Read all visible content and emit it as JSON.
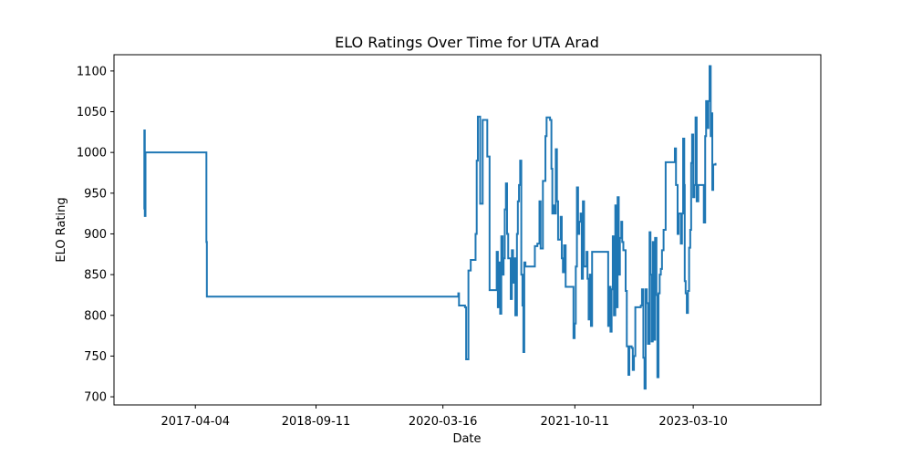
{
  "chart_data": {
    "type": "line",
    "title": "ELO Ratings Over Time for UTA Arad",
    "xlabel": "Date",
    "ylabel": "ELO Rating",
    "xlim": [
      "2016-04-15",
      "2024-09-15"
    ],
    "ylim": [
      690,
      1120
    ],
    "x_ticks": [
      "2017-04-04",
      "2018-09-11",
      "2020-03-16",
      "2021-10-11",
      "2023-03-10"
    ],
    "y_ticks": [
      700,
      750,
      800,
      850,
      900,
      950,
      1000,
      1050,
      1100
    ],
    "grid": false,
    "series": [
      {
        "color": "#1f77b4",
        "points": [
          [
            "2016-08-23",
            930
          ],
          [
            "2016-08-25",
            1027
          ],
          [
            "2016-08-27",
            922
          ],
          [
            "2016-08-30",
            1000
          ],
          [
            "2017-05-20",
            1000
          ],
          [
            "2017-05-22",
            890
          ],
          [
            "2017-05-24",
            823
          ],
          [
            "2020-05-20",
            823
          ],
          [
            "2020-05-22",
            827
          ],
          [
            "2020-05-25",
            812
          ],
          [
            "2020-06-20",
            810
          ],
          [
            "2020-06-25",
            746
          ],
          [
            "2020-07-05",
            855
          ],
          [
            "2020-07-15",
            868
          ],
          [
            "2020-08-05",
            900
          ],
          [
            "2020-08-10",
            990
          ],
          [
            "2020-08-15",
            1044
          ],
          [
            "2020-08-25",
            937
          ],
          [
            "2020-09-05",
            1040
          ],
          [
            "2020-09-25",
            995
          ],
          [
            "2020-10-05",
            831
          ],
          [
            "2020-10-25",
            831
          ],
          [
            "2020-11-05",
            878
          ],
          [
            "2020-11-10",
            810
          ],
          [
            "2020-11-15",
            865
          ],
          [
            "2020-11-20",
            802
          ],
          [
            "2020-11-25",
            897
          ],
          [
            "2020-12-01",
            850
          ],
          [
            "2020-12-05",
            870
          ],
          [
            "2020-12-10",
            930
          ],
          [
            "2020-12-15",
            962
          ],
          [
            "2020-12-20",
            900
          ],
          [
            "2020-12-25",
            870
          ],
          [
            "2021-01-05",
            820
          ],
          [
            "2021-01-10",
            880
          ],
          [
            "2021-01-15",
            840
          ],
          [
            "2021-01-20",
            870
          ],
          [
            "2021-01-25",
            800
          ],
          [
            "2021-02-01",
            900
          ],
          [
            "2021-02-05",
            940
          ],
          [
            "2021-02-10",
            960
          ],
          [
            "2021-02-15",
            990
          ],
          [
            "2021-02-20",
            850
          ],
          [
            "2021-02-25",
            812
          ],
          [
            "2021-03-01",
            755
          ],
          [
            "2021-03-05",
            865
          ],
          [
            "2021-03-10",
            860
          ],
          [
            "2021-04-15",
            860
          ],
          [
            "2021-04-20",
            885
          ],
          [
            "2021-05-01",
            888
          ],
          [
            "2021-05-10",
            940
          ],
          [
            "2021-05-15",
            882
          ],
          [
            "2021-05-25",
            965
          ],
          [
            "2021-06-05",
            1020
          ],
          [
            "2021-06-10",
            1043
          ],
          [
            "2021-06-25",
            1040
          ],
          [
            "2021-07-01",
            980
          ],
          [
            "2021-07-05",
            925
          ],
          [
            "2021-07-10",
            935
          ],
          [
            "2021-07-15",
            925
          ],
          [
            "2021-07-20",
            1004
          ],
          [
            "2021-07-25",
            940
          ],
          [
            "2021-07-30",
            893
          ],
          [
            "2021-08-10",
            921
          ],
          [
            "2021-08-15",
            870
          ],
          [
            "2021-08-20",
            853
          ],
          [
            "2021-08-25",
            886
          ],
          [
            "2021-09-01",
            835
          ],
          [
            "2021-09-30",
            835
          ],
          [
            "2021-10-05",
            772
          ],
          [
            "2021-10-10",
            790
          ],
          [
            "2021-10-15",
            860
          ],
          [
            "2021-10-20",
            957
          ],
          [
            "2021-10-25",
            900
          ],
          [
            "2021-10-30",
            915
          ],
          [
            "2021-11-05",
            925
          ],
          [
            "2021-11-10",
            845
          ],
          [
            "2021-11-15",
            940
          ],
          [
            "2021-11-20",
            860
          ],
          [
            "2021-11-25",
            860
          ],
          [
            "2021-12-01",
            878
          ],
          [
            "2021-12-05",
            845
          ],
          [
            "2021-12-10",
            795
          ],
          [
            "2021-12-15",
            850
          ],
          [
            "2021-12-20",
            787
          ],
          [
            "2021-12-25",
            878
          ],
          [
            "2022-03-01",
            878
          ],
          [
            "2022-03-05",
            787
          ],
          [
            "2022-03-10",
            835
          ],
          [
            "2022-03-15",
            780
          ],
          [
            "2022-03-20",
            832
          ],
          [
            "2022-03-25",
            897
          ],
          [
            "2022-03-30",
            800
          ],
          [
            "2022-04-05",
            935
          ],
          [
            "2022-04-10",
            810
          ],
          [
            "2022-04-15",
            945
          ],
          [
            "2022-04-20",
            850
          ],
          [
            "2022-04-25",
            895
          ],
          [
            "2022-05-01",
            915
          ],
          [
            "2022-05-05",
            890
          ],
          [
            "2022-05-10",
            880
          ],
          [
            "2022-05-20",
            830
          ],
          [
            "2022-05-25",
            762
          ],
          [
            "2022-06-01",
            727
          ],
          [
            "2022-06-05",
            762
          ],
          [
            "2022-06-15",
            760
          ],
          [
            "2022-06-20",
            733
          ],
          [
            "2022-06-25",
            750
          ],
          [
            "2022-07-01",
            810
          ],
          [
            "2022-07-25",
            812
          ],
          [
            "2022-07-30",
            832
          ],
          [
            "2022-08-05",
            748
          ],
          [
            "2022-08-10",
            710
          ],
          [
            "2022-08-15",
            832
          ],
          [
            "2022-08-20",
            815
          ],
          [
            "2022-08-25",
            765
          ],
          [
            "2022-09-01",
            902
          ],
          [
            "2022-09-05",
            850
          ],
          [
            "2022-09-10",
            768
          ],
          [
            "2022-09-15",
            890
          ],
          [
            "2022-09-20",
            770
          ],
          [
            "2022-09-25",
            895
          ],
          [
            "2022-10-01",
            825
          ],
          [
            "2022-10-05",
            724
          ],
          [
            "2022-10-10",
            827
          ],
          [
            "2022-10-15",
            850
          ],
          [
            "2022-10-20",
            857
          ],
          [
            "2022-10-25",
            880
          ],
          [
            "2022-11-01",
            905
          ],
          [
            "2022-11-10",
            988
          ],
          [
            "2022-11-20",
            988
          ],
          [
            "2022-12-15",
            988
          ],
          [
            "2022-12-20",
            1005
          ],
          [
            "2022-12-25",
            960
          ],
          [
            "2023-01-01",
            900
          ],
          [
            "2023-01-05",
            925
          ],
          [
            "2023-01-15",
            888
          ],
          [
            "2023-01-20",
            925
          ],
          [
            "2023-01-25",
            1017
          ],
          [
            "2023-01-30",
            960
          ],
          [
            "2023-02-01",
            842
          ],
          [
            "2023-02-05",
            827
          ],
          [
            "2023-02-10",
            803
          ],
          [
            "2023-02-15",
            830
          ],
          [
            "2023-02-20",
            883
          ],
          [
            "2023-02-25",
            905
          ],
          [
            "2023-03-01",
            987
          ],
          [
            "2023-03-05",
            1022
          ],
          [
            "2023-03-10",
            945
          ],
          [
            "2023-03-15",
            960
          ],
          [
            "2023-03-20",
            1043
          ],
          [
            "2023-03-25",
            940
          ],
          [
            "2023-04-01",
            960
          ],
          [
            "2023-04-10",
            960
          ],
          [
            "2023-04-20",
            960
          ],
          [
            "2023-04-25",
            914
          ],
          [
            "2023-05-01",
            1020
          ],
          [
            "2023-05-05",
            1063
          ],
          [
            "2023-05-10",
            1030
          ],
          [
            "2023-05-15",
            1063
          ],
          [
            "2023-05-20",
            1106
          ],
          [
            "2023-05-25",
            1020
          ],
          [
            "2023-05-30",
            1048
          ],
          [
            "2023-06-01",
            954
          ],
          [
            "2023-06-05",
            985
          ],
          [
            "2023-06-15",
            987
          ]
        ]
      }
    ]
  }
}
